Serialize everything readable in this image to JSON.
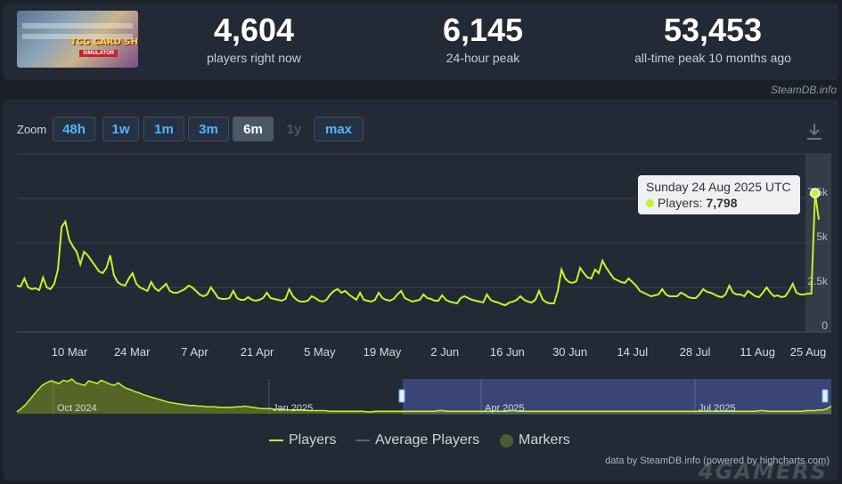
{
  "stats": {
    "current": {
      "value": "4,604",
      "label": "players right now"
    },
    "peak24": {
      "value": "6,145",
      "label": "24-hour peak"
    },
    "alltime": {
      "value": "53,453",
      "label": "all-time peak 10 months ago"
    }
  },
  "game": {
    "logo_text": "TCG CARD SHOP",
    "logo_sub": "SIMULATOR"
  },
  "credit": "SteamDB.info",
  "zoom": {
    "label": "Zoom",
    "buttons": [
      {
        "label": "48h",
        "state": "normal"
      },
      {
        "label": "1w",
        "state": "normal"
      },
      {
        "label": "1m",
        "state": "normal"
      },
      {
        "label": "3m",
        "state": "normal"
      },
      {
        "label": "6m",
        "state": "active"
      },
      {
        "label": "1y",
        "state": "disabled"
      },
      {
        "label": "max",
        "state": "normal"
      }
    ]
  },
  "tooltip": {
    "date": "Sunday 24 Aug 2025 UTC",
    "series_label": "Players:",
    "value": "7,798"
  },
  "legend": {
    "players": "Players",
    "average": "Average Players",
    "markers": "Markers"
  },
  "footer": "data by SteamDB.info (powered by highcharts.com)",
  "watermark": "4GAMERS",
  "colors": {
    "players": "#c3f32c",
    "average": "#5a6270",
    "markers": "#4d5a33",
    "accent": "#4fb6ff"
  },
  "chart_data": {
    "type": "line",
    "x_labels": [
      "10 Mar",
      "24 Mar",
      "7 Apr",
      "21 Apr",
      "5 May",
      "19 May",
      "2 Jun",
      "16 Jun",
      "30 Jun",
      "14 Jul",
      "28 Jul",
      "11 Aug",
      "25 Aug"
    ],
    "y_ticks": [
      "0",
      "2.5k",
      "5k",
      "7.5k"
    ],
    "ylim": [
      0,
      10000
    ],
    "series": [
      {
        "name": "Players",
        "values": [
          2600,
          2550,
          3000,
          2500,
          2400,
          2450,
          2350,
          3050,
          2500,
          2400,
          2700,
          3500,
          5900,
          6200,
          5200,
          4800,
          4500,
          3800,
          4500,
          4300,
          4000,
          3700,
          3400,
          3300,
          3600,
          4300,
          3200,
          2800,
          2650,
          2600,
          3000,
          3300,
          2700,
          2500,
          2400,
          2300,
          2800,
          2450,
          2300,
          2500,
          2700,
          2300,
          2200,
          2200,
          2300,
          2400,
          2600,
          2500,
          2300,
          2100,
          2000,
          2100,
          2500,
          2200,
          1900,
          1850,
          1850,
          1900,
          2300,
          1900,
          1800,
          1800,
          1950,
          1800,
          1750,
          1800,
          1900,
          2200,
          1900,
          1850,
          1800,
          1750,
          1850,
          2400,
          2000,
          1800,
          1700,
          1700,
          1750,
          2000,
          1900,
          1750,
          1700,
          1800,
          2100,
          2300,
          2400,
          2200,
          2300,
          2100,
          1950,
          1800,
          2200,
          1800,
          1750,
          1700,
          1800,
          2200,
          1900,
          1800,
          1750,
          1850,
          2100,
          2300,
          1900,
          1800,
          1700,
          1750,
          1800,
          2100,
          1900,
          1850,
          1750,
          1750,
          2050,
          1800,
          1700,
          1650,
          1600,
          1900,
          2000,
          1900,
          1800,
          1750,
          1700,
          1650,
          2100,
          1800,
          1700,
          1650,
          1550,
          1500,
          1650,
          1700,
          1800,
          2000,
          1800,
          1700,
          1650,
          1800,
          2300,
          1800,
          1650,
          1600,
          1600,
          2300,
          3500,
          3000,
          2800,
          2750,
          2850,
          3600,
          3300,
          3050,
          3000,
          3500,
          3300,
          4000,
          3600,
          3300,
          3000,
          2900,
          2800,
          2750,
          3000,
          2800,
          2600,
          2300,
          2200,
          2100,
          2000,
          2050,
          2100,
          2400,
          2100,
          2000,
          2000,
          2000,
          2200,
          2100,
          1950,
          1900,
          1900,
          2100,
          2400,
          2250,
          2200,
          2100,
          2000,
          1950,
          2100,
          2600,
          2200,
          2100,
          2100,
          2000,
          2300,
          2150,
          2000,
          1950,
          2200,
          2500,
          2200,
          2000,
          2050,
          1950,
          2000,
          2300,
          2700,
          2200,
          2100,
          2100,
          2150,
          2150,
          7798,
          6300
        ]
      }
    ],
    "navigator": {
      "labels": [
        "Oct 2024",
        "Jan 2025",
        "Apr 2025",
        "Jul 2025"
      ],
      "values": [
        3,
        8,
        14,
        22,
        30,
        38,
        45,
        49,
        52,
        50,
        48,
        53,
        51,
        55,
        49,
        47,
        45,
        52,
        50,
        48,
        53,
        50,
        47,
        45,
        49,
        44,
        40,
        38,
        35,
        33,
        30,
        28,
        26,
        24,
        22,
        20,
        18,
        17,
        16,
        15,
        14,
        13,
        13,
        12,
        12,
        11,
        11,
        11,
        10,
        10,
        10,
        10,
        11,
        11,
        12,
        11,
        10,
        9,
        8,
        8,
        8,
        7,
        7,
        7,
        6,
        6,
        6,
        6,
        6,
        5,
        5,
        5,
        5,
        5,
        4,
        4,
        4,
        4,
        4,
        4,
        4,
        4,
        4,
        3,
        3,
        4,
        4,
        4,
        4,
        4,
        4,
        4,
        4,
        4,
        4,
        4,
        4,
        4,
        4,
        4,
        5,
        5,
        4,
        4,
        4,
        4,
        4,
        4,
        4,
        4,
        4,
        4,
        4,
        4,
        4,
        4,
        4,
        5,
        5,
        4,
        4,
        4,
        4,
        4,
        4,
        4,
        4,
        4,
        4,
        4,
        4,
        4,
        4,
        4,
        4,
        4,
        4,
        4,
        4,
        4,
        4,
        4,
        4,
        4,
        4,
        4,
        4,
        4,
        4,
        4,
        4,
        4,
        4,
        4,
        4,
        4,
        4,
        4,
        4,
        4,
        4,
        4,
        4,
        4,
        4,
        4,
        4,
        4,
        4,
        4,
        4,
        4,
        4,
        4,
        4,
        4,
        5,
        5,
        4,
        4,
        4,
        4,
        4,
        4,
        4,
        4,
        4,
        5,
        5,
        5,
        6,
        6,
        8,
        12
      ],
      "ylim": [
        0,
        55
      ]
    }
  }
}
